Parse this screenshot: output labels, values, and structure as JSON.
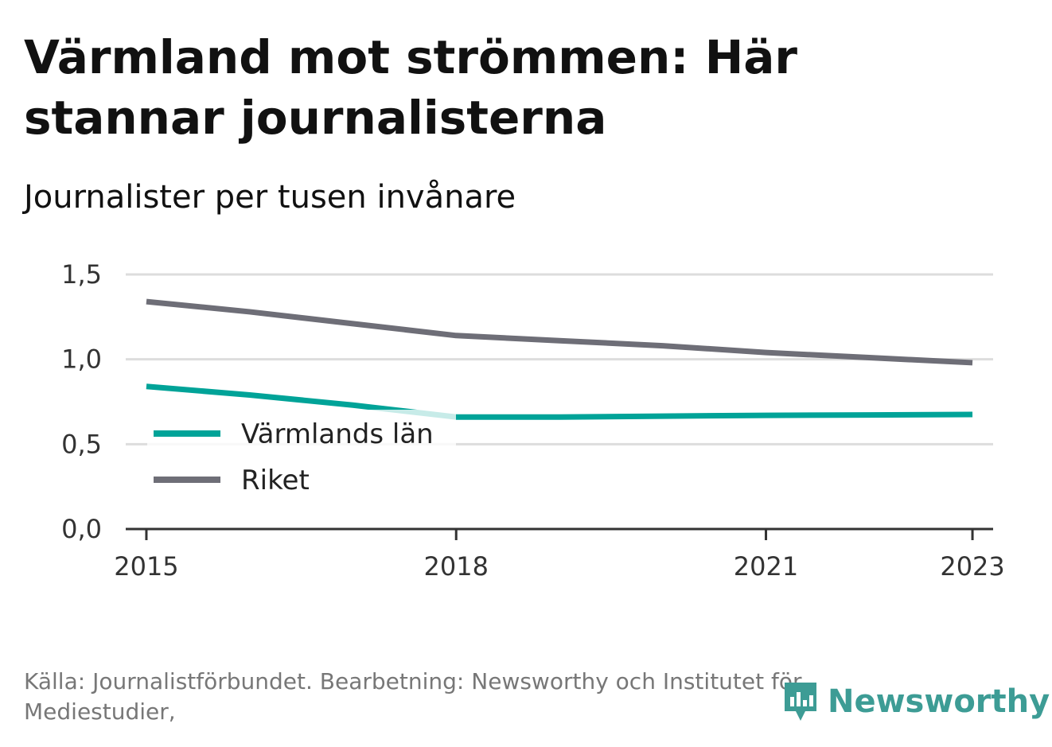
{
  "title": "Värmland mot strömmen: Här stannar journalisterna",
  "subtitle": "Journalister per tusen invånare",
  "source": "Källa: Journalistförbundet. Bearbetning: Newsworthy och Institutet för Mediestudier,",
  "brand": {
    "name": "Newsworthy",
    "color": "#3d9c95",
    "icon": "newsworthy-logo-icon"
  },
  "chart_data": {
    "type": "line",
    "x": [
      2015,
      2016,
      2017,
      2018,
      2019,
      2020,
      2021,
      2022,
      2023
    ],
    "x_ticks": [
      "2015",
      "2018",
      "2021",
      "2023"
    ],
    "y_ticks": [
      "0,0",
      "0,5",
      "1,0",
      "1,5"
    ],
    "ylim": [
      0,
      1.5
    ],
    "xlim": [
      2014.8,
      2023.2
    ],
    "grid": true,
    "legend_position": "center-left",
    "series": [
      {
        "name": "Värmlands län",
        "color": "#00a398",
        "values": [
          0.84,
          0.79,
          0.73,
          0.66,
          0.66,
          0.665,
          0.67,
          0.672,
          0.675
        ]
      },
      {
        "name": "Riket",
        "color": "#6e6e77",
        "values": [
          1.34,
          1.28,
          1.21,
          1.14,
          1.11,
          1.08,
          1.04,
          1.01,
          0.98
        ]
      }
    ]
  }
}
